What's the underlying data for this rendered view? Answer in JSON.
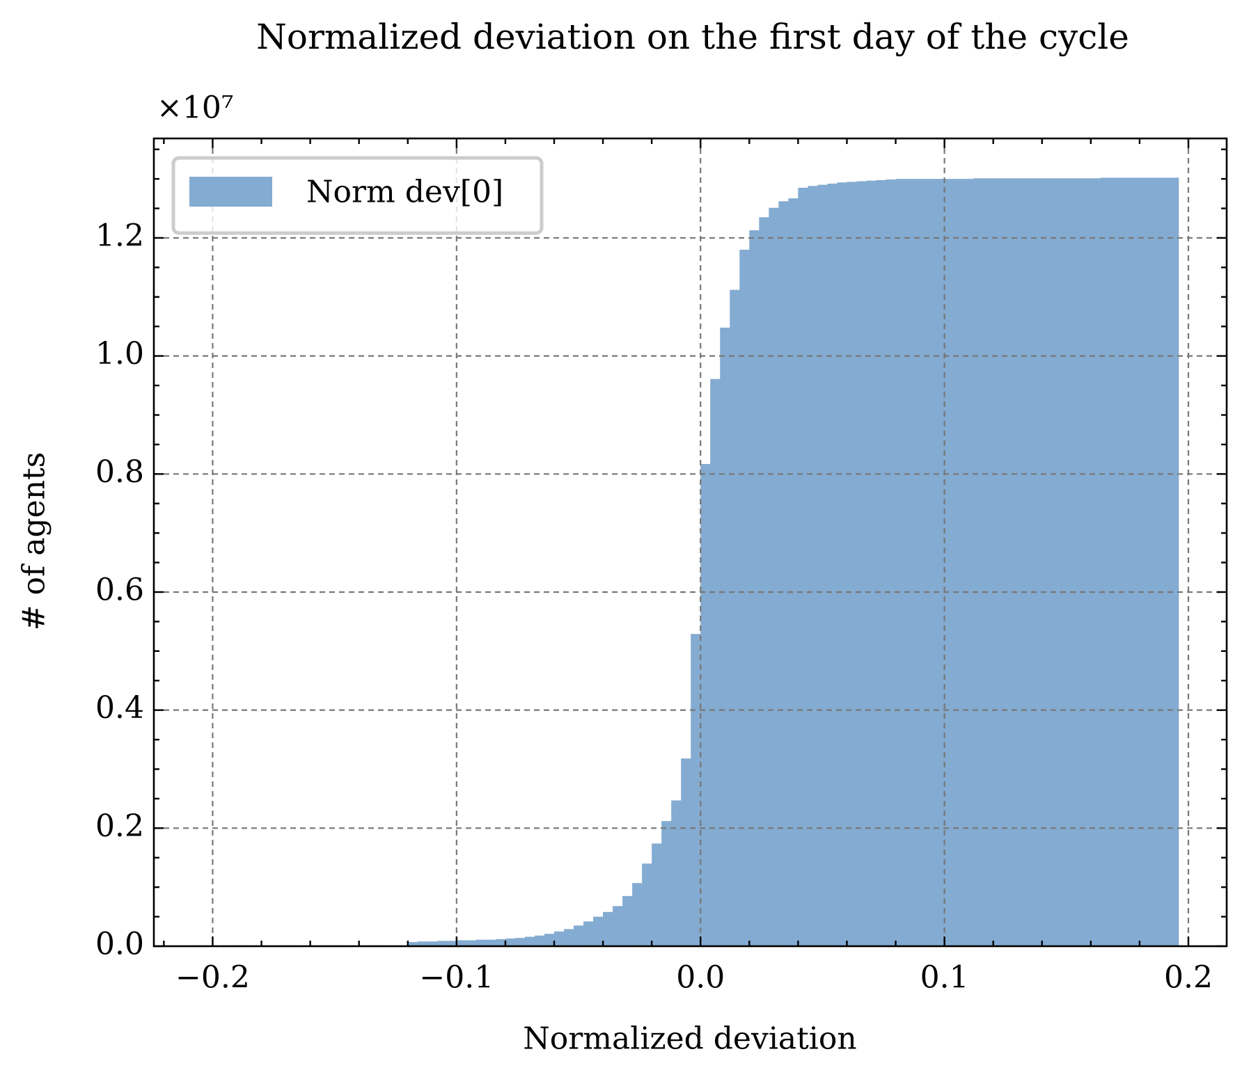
{
  "chart_data": {
    "type": "histogram",
    "title": "Normalized deviation on the first day of the cycle",
    "x_label": "Normalized deviation",
    "y_label": "# of agents",
    "y_offset_label": "×10⁷",
    "legend": "upper left",
    "grid": true,
    "xlim": [
      -0.2241,
      0.2157
    ],
    "ylim": [
      0,
      1.3685
    ],
    "xticks": [
      {
        "value": -0.2,
        "label": "−0.2"
      },
      {
        "value": -0.1,
        "label": "−0.1"
      },
      {
        "value": 0,
        "label": "0.0"
      },
      0.1,
      0.2
    ],
    "yticks": [
      {
        "value": 0,
        "label": "0.0"
      },
      0.2,
      0.4,
      0.6,
      0.8,
      {
        "value": 1,
        "label": "1.0"
      },
      1.2
    ],
    "xminorticks": [
      -0.22,
      -0.18,
      -0.16,
      -0.14,
      -0.12,
      -0.08,
      -0.06,
      -0.04,
      -0.02,
      0.02,
      0.04,
      0.06,
      0.08,
      0.12,
      0.14,
      0.16,
      0.18
    ],
    "yminorticks": [
      0.05,
      0.1,
      0.15,
      0.25,
      0.3,
      0.35,
      0.45,
      0.5,
      0.55,
      0.65,
      0.7,
      0.75,
      0.85,
      0.9,
      0.95,
      1.05,
      1.1,
      1.15,
      1.25,
      1.3,
      1.35
    ],
    "series": [
      {
        "name": "Norm dev[0]",
        "color": "#84abd1",
        "bins": [
          -0.12,
          -0.116,
          -0.112,
          -0.108,
          -0.104,
          -0.1,
          -0.096,
          -0.092,
          -0.088,
          -0.084,
          -0.08,
          -0.076,
          -0.072,
          -0.068,
          -0.064,
          -0.06,
          -0.056,
          -0.052,
          -0.048,
          -0.044,
          -0.04,
          -0.036,
          -0.032,
          -0.028,
          -0.024,
          -0.02,
          -0.016,
          -0.012,
          -0.008,
          -0.004,
          0,
          0.004,
          0.008,
          0.012,
          0.016,
          0.02,
          0.024,
          0.028,
          0.032,
          0.036,
          0.04,
          0.044,
          0.048,
          0.052,
          0.056,
          0.06,
          0.064,
          0.068,
          0.072,
          0.076,
          0.08,
          0.084,
          0.088,
          0.092,
          0.096,
          0.1,
          0.104,
          0.108,
          0.112,
          0.116,
          0.12,
          0.124,
          0.128,
          0.132,
          0.136,
          0.14,
          0.144,
          0.148,
          0.152,
          0.156,
          0.16,
          0.164,
          0.168,
          0.172,
          0.176,
          0.18,
          0.184,
          0.188,
          0.192,
          0.196
        ],
        "values": [
          0.007,
          0.008,
          0.008,
          0.009,
          0.009,
          0.01,
          0.01,
          0.011,
          0.011,
          0.012,
          0.013,
          0.014,
          0.016,
          0.018,
          0.021,
          0.025,
          0.029,
          0.035,
          0.042,
          0.05,
          0.058,
          0.068,
          0.085,
          0.107,
          0.14,
          0.174,
          0.212,
          0.247,
          0.318,
          0.529,
          0.817,
          0.961,
          1.048,
          1.112,
          1.18,
          1.213,
          1.235,
          1.251,
          1.262,
          1.267,
          1.285,
          1.288,
          1.29,
          1.292,
          1.294,
          1.295,
          1.296,
          1.297,
          1.298,
          1.299,
          1.3,
          1.3,
          1.3,
          1.3,
          1.3,
          1.3,
          1.3,
          1.3,
          1.301,
          1.301,
          1.301,
          1.301,
          1.301,
          1.301,
          1.301,
          1.301,
          1.301,
          1.301,
          1.301,
          1.301,
          1.301,
          1.302,
          1.302,
          1.302,
          1.302,
          1.302,
          1.302,
          1.302,
          1.302
        ]
      }
    ]
  }
}
